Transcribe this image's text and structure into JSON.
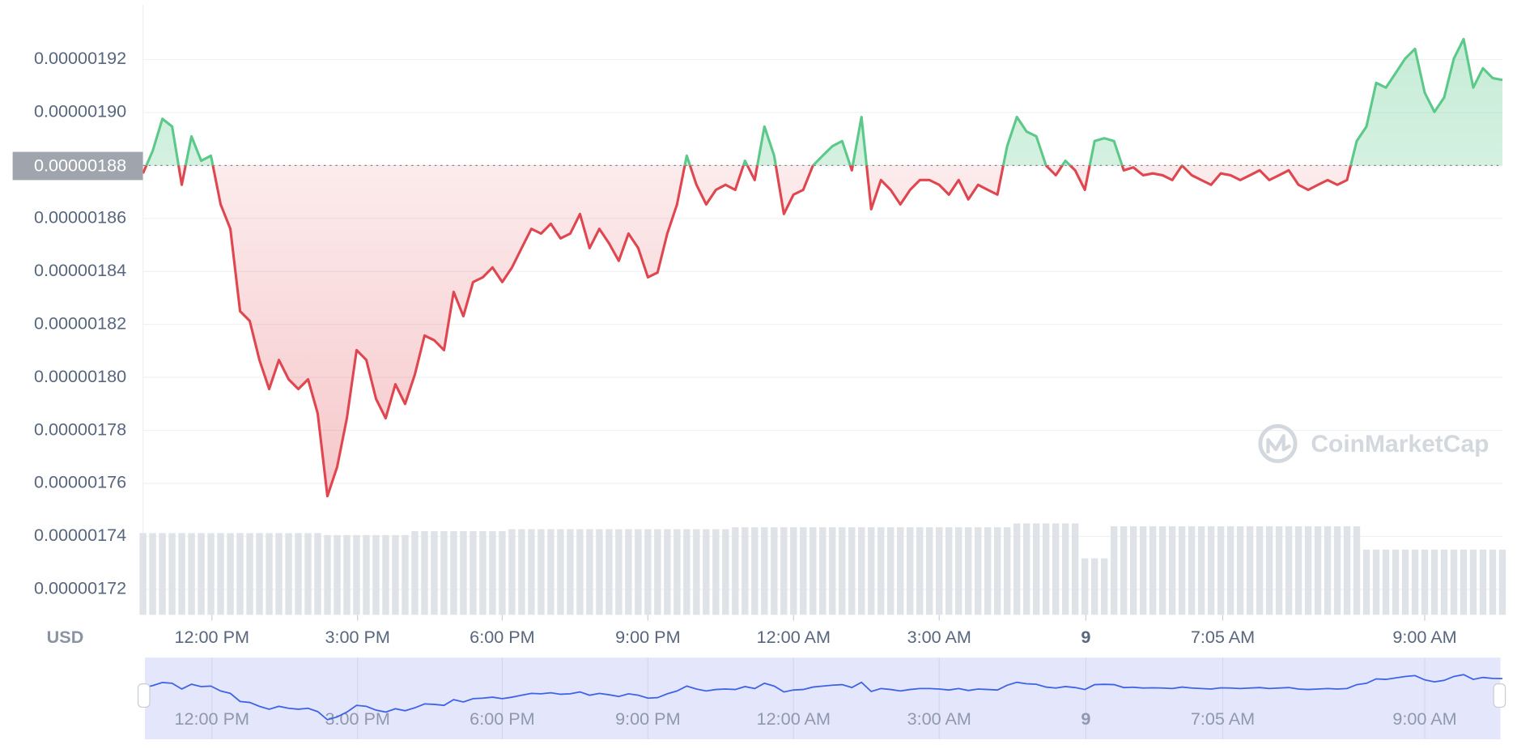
{
  "chart_data": {
    "type": "line",
    "currency": "USD",
    "watermark": "CoinMarketCap",
    "up_color": "#5cc98a",
    "down_color": "#e0464f",
    "volume_color": "#dfe2e7",
    "navigator_color": "#3f63e8",
    "grid": true,
    "baseline": {
      "value": 1.88e-06,
      "label": "0.00000188"
    },
    "xlim": [
      0,
      140
    ],
    "xticks": [
      {
        "value": 7.1,
        "label": "12:00 PM"
      },
      {
        "value": 22.1,
        "label": "3:00 PM"
      },
      {
        "value": 37,
        "label": "6:00 PM"
      },
      {
        "value": 52,
        "label": "9:00 PM"
      },
      {
        "value": 67,
        "label": "12:00 AM"
      },
      {
        "value": 82,
        "label": "3:00 AM"
      },
      {
        "value": 97.1,
        "label": "9"
      },
      {
        "value": 111.2,
        "label": "7:05 AM"
      },
      {
        "value": 132,
        "label": "9:00 AM"
      }
    ],
    "ylim": [
      1.7104e-06,
      1.9406e-06
    ],
    "yticks": [
      {
        "value": 1.72e-06,
        "label": "0.00000172"
      },
      {
        "value": 1.74e-06,
        "label": "0.00000174"
      },
      {
        "value": 1.76e-06,
        "label": "0.00000176"
      },
      {
        "value": 1.78e-06,
        "label": "0.00000178"
      },
      {
        "value": 1.8e-06,
        "label": "0.00000180"
      },
      {
        "value": 1.82e-06,
        "label": "0.00000182"
      },
      {
        "value": 1.84e-06,
        "label": "0.00000184"
      },
      {
        "value": 1.86e-06,
        "label": "0.00000186"
      },
      {
        "value": 1.88e-06,
        "label": "0.00000188"
      },
      {
        "value": 1.9e-06,
        "label": "0.00000190"
      },
      {
        "value": 1.92e-06,
        "label": "0.00000192"
      }
    ],
    "values": [
      1.877e-06,
      1.8855e-06,
      1.8976e-06,
      1.8947e-06,
      1.8727e-06,
      1.891e-06,
      1.8818e-06,
      1.8837e-06,
      1.8653e-06,
      1.8561e-06,
      1.825e-06,
      1.8213e-06,
      1.8066e-06,
      1.7956e-06,
      1.8066e-06,
      1.7993e-06,
      1.7956e-06,
      1.7993e-06,
      1.7864e-06,
      1.7552e-06,
      1.7662e-06,
      1.7846e-06,
      1.8103e-06,
      1.8066e-06,
      1.7919e-06,
      1.7846e-06,
      1.7974e-06,
      1.79e-06,
      1.8011e-06,
      1.8158e-06,
      1.814e-06,
      1.8103e-06,
      1.8323e-06,
      1.8231e-06,
      1.836e-06,
      1.8378e-06,
      1.8415e-06,
      1.836e-06,
      1.8415e-06,
      1.8488e-06,
      1.8561e-06,
      1.8543e-06,
      1.858e-06,
      1.8525e-06,
      1.8543e-06,
      1.8617e-06,
      1.8488e-06,
      1.8561e-06,
      1.8506e-06,
      1.844e-06,
      1.8543e-06,
      1.8488e-06,
      1.8378e-06,
      1.8396e-06,
      1.8543e-06,
      1.8653e-06,
      1.8837e-06,
      1.8727e-06,
      1.8653e-06,
      1.8708e-06,
      1.8727e-06,
      1.8708e-06,
      1.8818e-06,
      1.8745e-06,
      1.8947e-06,
      1.8837e-06,
      1.8617e-06,
      1.869e-06,
      1.8708e-06,
      1.88e-06,
      1.8837e-06,
      1.8873e-06,
      1.8892e-06,
      1.8782e-06,
      1.8983e-06,
      1.8635e-06,
      1.8745e-06,
      1.8708e-06,
      1.8653e-06,
      1.8708e-06,
      1.8745e-06,
      1.8745e-06,
      1.8727e-06,
      1.869e-06,
      1.8745e-06,
      1.8672e-06,
      1.8727e-06,
      1.8708e-06,
      1.869e-06,
      1.8873e-06,
      1.8983e-06,
      1.8928e-06,
      1.891e-06,
      1.88e-06,
      1.8763e-06,
      1.8818e-06,
      1.8782e-06,
      1.8708e-06,
      1.8892e-06,
      1.8903e-06,
      1.8892e-06,
      1.8782e-06,
      1.8793e-06,
      1.8763e-06,
      1.877e-06,
      1.8763e-06,
      1.8745e-06,
      1.88e-06,
      1.8763e-06,
      1.8745e-06,
      1.8727e-06,
      1.877e-06,
      1.8763e-06,
      1.8745e-06,
      1.8763e-06,
      1.8782e-06,
      1.8745e-06,
      1.8763e-06,
      1.8782e-06,
      1.8727e-06,
      1.8708e-06,
      1.8727e-06,
      1.8745e-06,
      1.8727e-06,
      1.8745e-06,
      1.8892e-06,
      1.8947e-06,
      1.9112e-06,
      1.9094e-06,
      1.9149e-06,
      1.9204e-06,
      1.924e-06,
      1.9075e-06,
      1.9002e-06,
      1.9057e-06,
      1.9204e-06,
      1.9277e-06,
      1.9094e-06,
      1.9167e-06,
      1.913e-06,
      1.9123e-06
    ],
    "volume": [
      84,
      84,
      84,
      84,
      84,
      84,
      84,
      84,
      84,
      84,
      84,
      84,
      84,
      84,
      84,
      84,
      84,
      84,
      84,
      82,
      82,
      82,
      82,
      82,
      82,
      82,
      82,
      82,
      86,
      86,
      86,
      86,
      86,
      86,
      86,
      86,
      86,
      86,
      88,
      88,
      88,
      88,
      88,
      88,
      88,
      88,
      88,
      88,
      88,
      88,
      88,
      88,
      88,
      88,
      88,
      88,
      88,
      88,
      88,
      88,
      88,
      90,
      90,
      90,
      90,
      90,
      90,
      90,
      90,
      90,
      90,
      90,
      90,
      90,
      90,
      90,
      90,
      90,
      90,
      90,
      90,
      90,
      90,
      90,
      90,
      90,
      90,
      90,
      90,
      90,
      94,
      94,
      94,
      94,
      94,
      94,
      94,
      58,
      58,
      58,
      91,
      91,
      91,
      91,
      91,
      91,
      91,
      91,
      91,
      91,
      91,
      91,
      91,
      91,
      91,
      91,
      91,
      91,
      91,
      91,
      91,
      91,
      91,
      91,
      91,
      91,
      67,
      67,
      67,
      67,
      67,
      67,
      67,
      67,
      67,
      67,
      67,
      67,
      67,
      67,
      67
    ]
  }
}
